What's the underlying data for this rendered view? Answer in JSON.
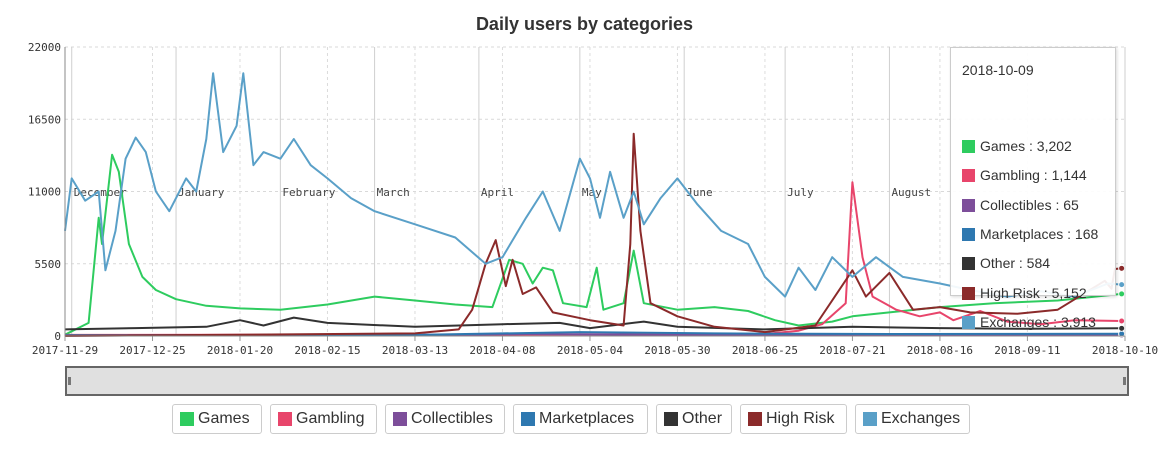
{
  "chart_data": {
    "type": "line",
    "title": "Daily users by categories",
    "ylim": [
      0,
      22000
    ],
    "y_ticks": [
      0,
      5500,
      11000,
      16500,
      22000
    ],
    "x_tick_labels": [
      "2017-11-29",
      "2017-12-25",
      "2018-01-20",
      "2018-02-15",
      "2018-03-13",
      "2018-04-08",
      "2018-05-04",
      "2018-05-30",
      "2018-06-25",
      "2018-07-21",
      "2018-08-16",
      "2018-09-11",
      "2018-10-10"
    ],
    "x_range": [
      "2017-11-29",
      "2018-10-10"
    ],
    "month_labels": [
      "December",
      "January",
      "February",
      "March",
      "April",
      "May",
      "June",
      "July",
      "August"
    ],
    "grid": true,
    "series": [
      {
        "name": "Games",
        "color": "#2ecc5f",
        "points": [
          [
            "2017-11-29",
            100
          ],
          [
            "2017-12-06",
            1000
          ],
          [
            "2017-12-09",
            9000
          ],
          [
            "2017-12-10",
            7000
          ],
          [
            "2017-12-13",
            13800
          ],
          [
            "2017-12-15",
            12500
          ],
          [
            "2017-12-18",
            7000
          ],
          [
            "2017-12-22",
            4500
          ],
          [
            "2017-12-26",
            3500
          ],
          [
            "2018-01-01",
            2800
          ],
          [
            "2018-01-10",
            2300
          ],
          [
            "2018-01-20",
            2100
          ],
          [
            "2018-02-01",
            2000
          ],
          [
            "2018-02-15",
            2400
          ],
          [
            "2018-03-01",
            3000
          ],
          [
            "2018-03-13",
            2700
          ],
          [
            "2018-03-25",
            2400
          ],
          [
            "2018-04-05",
            2200
          ],
          [
            "2018-04-10",
            5800
          ],
          [
            "2018-04-14",
            5500
          ],
          [
            "2018-04-17",
            4000
          ],
          [
            "2018-04-20",
            5200
          ],
          [
            "2018-04-23",
            5000
          ],
          [
            "2018-04-26",
            2500
          ],
          [
            "2018-05-03",
            2200
          ],
          [
            "2018-05-06",
            5200
          ],
          [
            "2018-05-08",
            2000
          ],
          [
            "2018-05-14",
            2500
          ],
          [
            "2018-05-17",
            6500
          ],
          [
            "2018-05-20",
            2500
          ],
          [
            "2018-05-30",
            2000
          ],
          [
            "2018-06-10",
            2200
          ],
          [
            "2018-06-20",
            1900
          ],
          [
            "2018-06-28",
            1200
          ],
          [
            "2018-07-05",
            800
          ],
          [
            "2018-07-15",
            1100
          ],
          [
            "2018-07-21",
            1500
          ],
          [
            "2018-08-01",
            1800
          ],
          [
            "2018-08-16",
            2200
          ],
          [
            "2018-09-01",
            2500
          ],
          [
            "2018-09-20",
            2700
          ],
          [
            "2018-10-09",
            3202
          ]
        ]
      },
      {
        "name": "Gambling",
        "color": "#e8456b",
        "points": [
          [
            "2017-11-29",
            80
          ],
          [
            "2018-03-13",
            100
          ],
          [
            "2018-06-25",
            150
          ],
          [
            "2018-07-05",
            400
          ],
          [
            "2018-07-12",
            900
          ],
          [
            "2018-07-19",
            2500
          ],
          [
            "2018-07-21",
            11700
          ],
          [
            "2018-07-24",
            6000
          ],
          [
            "2018-07-27",
            3000
          ],
          [
            "2018-08-03",
            2000
          ],
          [
            "2018-08-10",
            1500
          ],
          [
            "2018-08-16",
            1800
          ],
          [
            "2018-08-20",
            1200
          ],
          [
            "2018-08-28",
            1900
          ],
          [
            "2018-09-05",
            1100
          ],
          [
            "2018-09-15",
            900
          ],
          [
            "2018-09-25",
            1200
          ],
          [
            "2018-10-09",
            1144
          ]
        ]
      },
      {
        "name": "Collectibles",
        "color": "#7d4e9a",
        "points": [
          [
            "2017-11-29",
            30
          ],
          [
            "2018-03-13",
            60
          ],
          [
            "2018-04-15",
            150
          ],
          [
            "2018-05-20",
            100
          ],
          [
            "2018-07-01",
            60
          ],
          [
            "2018-10-09",
            65
          ]
        ]
      },
      {
        "name": "Marketplaces",
        "color": "#2e78b0",
        "points": [
          [
            "2017-11-29",
            50
          ],
          [
            "2018-03-13",
            80
          ],
          [
            "2018-05-01",
            300
          ],
          [
            "2018-06-10",
            200
          ],
          [
            "2018-08-01",
            150
          ],
          [
            "2018-10-09",
            168
          ]
        ]
      },
      {
        "name": "Other",
        "color": "#333333",
        "points": [
          [
            "2017-11-29",
            500
          ],
          [
            "2017-12-20",
            600
          ],
          [
            "2018-01-10",
            700
          ],
          [
            "2018-01-20",
            1200
          ],
          [
            "2018-01-27",
            800
          ],
          [
            "2018-02-05",
            1400
          ],
          [
            "2018-02-15",
            1000
          ],
          [
            "2018-03-13",
            700
          ],
          [
            "2018-04-08",
            900
          ],
          [
            "2018-04-25",
            1000
          ],
          [
            "2018-05-04",
            600
          ],
          [
            "2018-05-20",
            1100
          ],
          [
            "2018-05-30",
            700
          ],
          [
            "2018-06-25",
            500
          ],
          [
            "2018-07-21",
            700
          ],
          [
            "2018-08-16",
            600
          ],
          [
            "2018-09-11",
            550
          ],
          [
            "2018-10-09",
            584
          ]
        ]
      },
      {
        "name": "High Risk",
        "color": "#8b2a2a",
        "points": [
          [
            "2017-11-29",
            0
          ],
          [
            "2018-03-13",
            200
          ],
          [
            "2018-03-26",
            500
          ],
          [
            "2018-03-30",
            2000
          ],
          [
            "2018-04-03",
            5500
          ],
          [
            "2018-04-06",
            7300
          ],
          [
            "2018-04-09",
            3800
          ],
          [
            "2018-04-11",
            5800
          ],
          [
            "2018-04-14",
            3200
          ],
          [
            "2018-04-18",
            3700
          ],
          [
            "2018-04-23",
            1800
          ],
          [
            "2018-05-04",
            1200
          ],
          [
            "2018-05-14",
            800
          ],
          [
            "2018-05-16",
            7000
          ],
          [
            "2018-05-17",
            15400
          ],
          [
            "2018-05-19",
            8000
          ],
          [
            "2018-05-22",
            2500
          ],
          [
            "2018-05-30",
            1500
          ],
          [
            "2018-06-10",
            700
          ],
          [
            "2018-06-25",
            300
          ],
          [
            "2018-07-10",
            800
          ],
          [
            "2018-07-21",
            5000
          ],
          [
            "2018-07-25",
            3000
          ],
          [
            "2018-08-01",
            4800
          ],
          [
            "2018-08-08",
            2000
          ],
          [
            "2018-08-16",
            2200
          ],
          [
            "2018-08-25",
            1800
          ],
          [
            "2018-09-08",
            1700
          ],
          [
            "2018-09-20",
            2000
          ],
          [
            "2018-10-04",
            4200
          ],
          [
            "2018-10-06",
            3600
          ],
          [
            "2018-10-07",
            5100
          ],
          [
            "2018-10-09",
            5152
          ]
        ]
      },
      {
        "name": "Exchanges",
        "color": "#5aa0c8",
        "points": [
          [
            "2017-11-29",
            8000
          ],
          [
            "2017-12-01",
            12000
          ],
          [
            "2017-12-05",
            10300
          ],
          [
            "2017-12-09",
            11000
          ],
          [
            "2017-12-11",
            5000
          ],
          [
            "2017-12-14",
            8000
          ],
          [
            "2017-12-17",
            13500
          ],
          [
            "2017-12-20",
            15100
          ],
          [
            "2017-12-23",
            14000
          ],
          [
            "2017-12-26",
            11000
          ],
          [
            "2017-12-30",
            9500
          ],
          [
            "2018-01-04",
            12000
          ],
          [
            "2018-01-07",
            11000
          ],
          [
            "2018-01-10",
            15000
          ],
          [
            "2018-01-12",
            20000
          ],
          [
            "2018-01-15",
            14000
          ],
          [
            "2018-01-19",
            16000
          ],
          [
            "2018-01-21",
            20000
          ],
          [
            "2018-01-24",
            13000
          ],
          [
            "2018-01-27",
            14000
          ],
          [
            "2018-02-01",
            13500
          ],
          [
            "2018-02-05",
            15000
          ],
          [
            "2018-02-10",
            13000
          ],
          [
            "2018-02-15",
            12000
          ],
          [
            "2018-02-22",
            10500
          ],
          [
            "2018-03-01",
            9500
          ],
          [
            "2018-03-13",
            8500
          ],
          [
            "2018-03-25",
            7500
          ],
          [
            "2018-04-03",
            5500
          ],
          [
            "2018-04-08",
            6000
          ],
          [
            "2018-04-15",
            9000
          ],
          [
            "2018-04-20",
            11000
          ],
          [
            "2018-04-25",
            8000
          ],
          [
            "2018-05-01",
            13500
          ],
          [
            "2018-05-04",
            12000
          ],
          [
            "2018-05-07",
            9000
          ],
          [
            "2018-05-10",
            12500
          ],
          [
            "2018-05-14",
            9000
          ],
          [
            "2018-05-17",
            11000
          ],
          [
            "2018-05-20",
            8500
          ],
          [
            "2018-05-25",
            10500
          ],
          [
            "2018-05-30",
            12000
          ],
          [
            "2018-06-05",
            10000
          ],
          [
            "2018-06-12",
            8000
          ],
          [
            "2018-06-20",
            7000
          ],
          [
            "2018-06-25",
            4500
          ],
          [
            "2018-07-01",
            3000
          ],
          [
            "2018-07-05",
            5200
          ],
          [
            "2018-07-10",
            3500
          ],
          [
            "2018-07-15",
            6000
          ],
          [
            "2018-07-21",
            4500
          ],
          [
            "2018-07-28",
            6000
          ],
          [
            "2018-08-05",
            4500
          ],
          [
            "2018-08-16",
            4000
          ],
          [
            "2018-08-25",
            3500
          ],
          [
            "2018-09-05",
            3000
          ],
          [
            "2018-09-15",
            3400
          ],
          [
            "2018-09-25",
            3000
          ],
          [
            "2018-10-05",
            4000
          ],
          [
            "2018-10-09",
            3913
          ]
        ]
      }
    ]
  },
  "tooltip": {
    "date": "2018-10-09",
    "rows": [
      "Games : 3,202",
      "Gambling : 1,144",
      "Collectibles : 65",
      "Marketplaces : 168",
      "Other : 584",
      "High Risk : 5,152",
      "Exchanges : 3,913"
    ],
    "colors": [
      "#2ecc5f",
      "#e8456b",
      "#7d4e9a",
      "#2e78b0",
      "#333333",
      "#8b2a2a",
      "#5aa0c8"
    ]
  },
  "legend": {
    "items": [
      {
        "label": "Games",
        "color": "#2ecc5f"
      },
      {
        "label": "Gambling",
        "color": "#e8456b"
      },
      {
        "label": "Collectibles",
        "color": "#7d4e9a"
      },
      {
        "label": "Marketplaces",
        "color": "#2e78b0"
      },
      {
        "label": "Other",
        "color": "#333333"
      },
      {
        "label": "High Risk",
        "color": "#8b2a2a"
      },
      {
        "label": "Exchanges",
        "color": "#5aa0c8"
      }
    ]
  }
}
